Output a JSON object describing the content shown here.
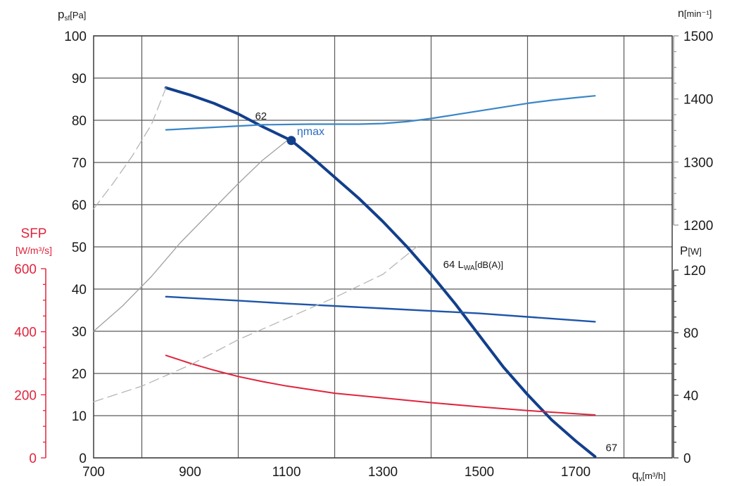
{
  "chart_data": {
    "type": "line",
    "title": "",
    "x_axis": {
      "label_main": "q",
      "label_sub": "v",
      "label_unit": "[m³/h]",
      "range": [
        700,
        1900
      ],
      "ticks": [
        700,
        900,
        1100,
        1300,
        1500,
        1700
      ]
    },
    "y_left": {
      "label_main": "p",
      "label_sub": "sf",
      "label_unit": "[Pa]",
      "range": [
        0,
        100
      ],
      "ticks": [
        0,
        10,
        20,
        30,
        40,
        50,
        60,
        70,
        80,
        90,
        100
      ]
    },
    "y_sfp": {
      "label": "SFP",
      "unit": "[W/m³/s]",
      "range": [
        0,
        600
      ],
      "ticks": [
        0,
        200,
        400,
        600
      ],
      "color": "#e0243c"
    },
    "y_speed": {
      "label_main": "n",
      "label_unit": "[min⁻¹]",
      "range": [
        1200,
        1500
      ],
      "ticks": [
        1200,
        1300,
        1400,
        1500
      ]
    },
    "y_power": {
      "label_main": "P",
      "label_unit": "[W]",
      "range": [
        0,
        120
      ],
      "ticks": [
        0,
        40,
        80,
        120
      ]
    },
    "grid": true,
    "series": [
      {
        "key": "pressure",
        "axis": "y_left",
        "color": "#123f8c",
        "width": 4,
        "points": [
          [
            850,
            87.7
          ],
          [
            900,
            86.0
          ],
          [
            950,
            84.0
          ],
          [
            1000,
            81.5
          ],
          [
            1050,
            78.5
          ],
          [
            1110,
            75.2
          ],
          [
            1150,
            71.5
          ],
          [
            1200,
            66.5
          ],
          [
            1250,
            61.5
          ],
          [
            1300,
            56.0
          ],
          [
            1350,
            50.0
          ],
          [
            1400,
            43.5
          ],
          [
            1450,
            36.5
          ],
          [
            1500,
            29.0
          ],
          [
            1550,
            21.5
          ],
          [
            1600,
            15.0
          ],
          [
            1650,
            9.0
          ],
          [
            1700,
            4.0
          ],
          [
            1740,
            0.3
          ]
        ]
      },
      {
        "key": "speed",
        "axis": "y_speed",
        "color": "#3a86c8",
        "width": 2.2,
        "points": [
          [
            850,
            1351
          ],
          [
            950,
            1355
          ],
          [
            1050,
            1359
          ],
          [
            1150,
            1360
          ],
          [
            1250,
            1360
          ],
          [
            1300,
            1361
          ],
          [
            1350,
            1364
          ],
          [
            1400,
            1369
          ],
          [
            1450,
            1375
          ],
          [
            1500,
            1381
          ],
          [
            1550,
            1387
          ],
          [
            1600,
            1393
          ],
          [
            1650,
            1398
          ],
          [
            1700,
            1402
          ],
          [
            1740,
            1405
          ]
        ]
      },
      {
        "key": "power",
        "axis": "y_power",
        "color": "#1f55a8",
        "width": 2.4,
        "points": [
          [
            850,
            103
          ],
          [
            1000,
            100.5
          ],
          [
            1100,
            98.6
          ],
          [
            1300,
            95.5
          ],
          [
            1500,
            92.3
          ],
          [
            1740,
            87.0
          ]
        ]
      },
      {
        "key": "sfp",
        "axis": "y_sfp",
        "color": "#e0243c",
        "width": 2,
        "points": [
          [
            850,
            325
          ],
          [
            900,
            300
          ],
          [
            950,
            278
          ],
          [
            1000,
            258
          ],
          [
            1050,
            242
          ],
          [
            1100,
            228
          ],
          [
            1200,
            205
          ],
          [
            1300,
            190
          ],
          [
            1400,
            175
          ],
          [
            1500,
            162
          ],
          [
            1600,
            150
          ],
          [
            1700,
            140
          ],
          [
            1740,
            136
          ]
        ]
      },
      {
        "key": "system-62",
        "axis": "y_left",
        "color": "#a0a0a0",
        "width": 1.3,
        "dash": "none",
        "points": [
          [
            700,
            30
          ],
          [
            760,
            36
          ],
          [
            820,
            43
          ],
          [
            880,
            51
          ],
          [
            940,
            58
          ],
          [
            1000,
            65
          ],
          [
            1050,
            70.5
          ],
          [
            1110,
            76
          ]
        ]
      },
      {
        "key": "system-upper",
        "axis": "y_left",
        "color": "#b5b5b5",
        "width": 1.3,
        "dash": "14 7",
        "points": [
          [
            700,
            59
          ],
          [
            740,
            65
          ],
          [
            780,
            71.5
          ],
          [
            820,
            79
          ],
          [
            850,
            87.7
          ]
        ]
      },
      {
        "key": "system-64",
        "axis": "y_left",
        "color": "#b5b5b5",
        "width": 1.3,
        "dash": "14 7",
        "points": [
          [
            700,
            13.3
          ],
          [
            800,
            17
          ],
          [
            900,
            22
          ],
          [
            1000,
            28
          ],
          [
            1100,
            33
          ],
          [
            1200,
            38
          ],
          [
            1300,
            43.5
          ],
          [
            1370,
            50
          ]
        ]
      }
    ],
    "markers": [
      {
        "label": "ηmax",
        "x": 1110,
        "y": 75.2,
        "color": "#123f8c"
      }
    ],
    "annotations": [
      {
        "key": "lwa-62",
        "text": "62",
        "x": 1035,
        "y": 81.2
      },
      {
        "key": "lwa-64",
        "text": "64 L",
        "sub": "WA",
        "tail": "[dB(A)]",
        "x": 1425,
        "y": 46.0
      },
      {
        "key": "lwa-67",
        "text": "67",
        "x": 1762,
        "y": 2.6
      }
    ]
  }
}
